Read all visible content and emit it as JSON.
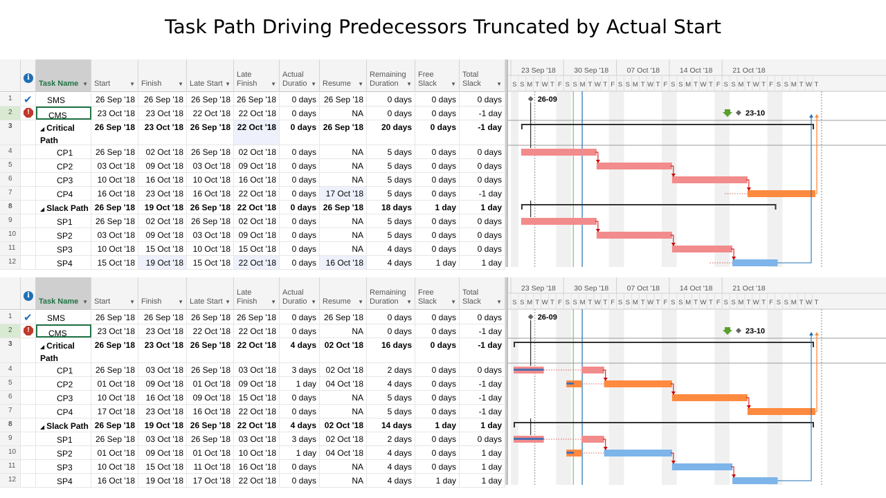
{
  "title": "Task Path Driving Predecessors Truncated by Actual Start",
  "columns": [
    {
      "key": "name",
      "label": "Task Name"
    },
    {
      "key": "start",
      "label": "Start"
    },
    {
      "key": "finish",
      "label": "Finish"
    },
    {
      "key": "late_start",
      "label": "Late Start"
    },
    {
      "key": "late_finish",
      "label": "Late Finish"
    },
    {
      "key": "actual_duration",
      "label": "Actual Duratio"
    },
    {
      "key": "resume",
      "label": "Resume"
    },
    {
      "key": "remaining_duration",
      "label": "Remaining Duration"
    },
    {
      "key": "free_slack",
      "label": "Free Slack"
    },
    {
      "key": "total_slack",
      "label": "Total Slack"
    }
  ],
  "timescale": {
    "weeks": [
      "23 Sep '18",
      "30 Sep '18",
      "07 Oct '18",
      "14 Oct '18",
      "21 Oct '18"
    ],
    "day_letters": [
      "S",
      "S",
      "M",
      "T",
      "W",
      "T",
      "F",
      "S",
      "S",
      "M",
      "T",
      "W",
      "T",
      "F",
      "S",
      "S",
      "M",
      "T",
      "W",
      "T",
      "F",
      "S",
      "S",
      "M",
      "T",
      "W",
      "T",
      "F",
      "S",
      "S",
      "M",
      "T",
      "W",
      "T",
      "F",
      "S",
      "S",
      "M",
      "T",
      "W",
      "T"
    ]
  },
  "colors": {
    "critical_bar": "#f28b8b",
    "near_critical_bar": "#fd8a3f",
    "normal_bar": "#7db4ea",
    "progress_bar": "#4a6fb0",
    "summary_bar": "#333333",
    "status_line": "#1f6fb5",
    "current_line": "#6bab5b"
  },
  "panels": [
    {
      "rows": [
        {
          "id": "1",
          "icon": "check",
          "name": "SMS",
          "start": "26 Sep '18",
          "finish": "26 Sep '18",
          "late_start": "26 Sep '18",
          "late_finish": "26 Sep '18",
          "actual_duration": "0 days",
          "resume": "26 Sep '18",
          "remaining_duration": "0 days",
          "free_slack": "0 days",
          "total_slack": "0 days",
          "milestone_label": "26-09"
        },
        {
          "id": "2",
          "icon": "warn",
          "name": "CMS",
          "start": "23 Oct '18",
          "finish": "23 Oct '18",
          "late_start": "22 Oct '18",
          "late_finish": "22 Oct '18",
          "actual_duration": "0 days",
          "resume": "NA",
          "remaining_duration": "0 days",
          "free_slack": "0 days",
          "total_slack": "-1 day",
          "milestone_label": "23-10"
        },
        {
          "id": "3",
          "summary": true,
          "name": "Critical Path",
          "start": "26 Sep '18",
          "finish": "23 Oct '18",
          "late_start": "26 Sep '18",
          "late_finish": "22 Oct '18",
          "actual_duration": "0 days",
          "resume": "26 Sep '18",
          "remaining_duration": "20 days",
          "free_slack": "0 days",
          "total_slack": "-1 day"
        },
        {
          "id": "4",
          "name": "CP1",
          "start": "26 Sep '18",
          "finish": "02 Oct '18",
          "late_start": "26 Sep '18",
          "late_finish": "02 Oct '18",
          "actual_duration": "0 days",
          "resume": "NA",
          "remaining_duration": "5 days",
          "free_slack": "0 days",
          "total_slack": "0 days"
        },
        {
          "id": "5",
          "name": "CP2",
          "start": "03 Oct '18",
          "finish": "09 Oct '18",
          "late_start": "03 Oct '18",
          "late_finish": "09 Oct '18",
          "actual_duration": "0 days",
          "resume": "NA",
          "remaining_duration": "5 days",
          "free_slack": "0 days",
          "total_slack": "0 days"
        },
        {
          "id": "6",
          "name": "CP3",
          "start": "10 Oct '18",
          "finish": "16 Oct '18",
          "late_start": "10 Oct '18",
          "late_finish": "16 Oct '18",
          "actual_duration": "0 days",
          "resume": "NA",
          "remaining_duration": "5 days",
          "free_slack": "0 days",
          "total_slack": "0 days"
        },
        {
          "id": "7",
          "name": "CP4",
          "start": "16 Oct '18",
          "finish": "23 Oct '18",
          "late_start": "16 Oct '18",
          "late_finish": "22 Oct '18",
          "actual_duration": "0 days",
          "resume": "17 Oct '18",
          "remaining_duration": "5 days",
          "free_slack": "0 days",
          "total_slack": "-1 day"
        },
        {
          "id": "8",
          "summary": true,
          "name": "Slack Path",
          "start": "26 Sep '18",
          "finish": "19 Oct '18",
          "late_start": "26 Sep '18",
          "late_finish": "22 Oct '18",
          "actual_duration": "0 days",
          "resume": "26 Sep '18",
          "remaining_duration": "18 days",
          "free_slack": "1 day",
          "total_slack": "1 day"
        },
        {
          "id": "9",
          "name": "SP1",
          "start": "26 Sep '18",
          "finish": "02 Oct '18",
          "late_start": "26 Sep '18",
          "late_finish": "02 Oct '18",
          "actual_duration": "0 days",
          "resume": "NA",
          "remaining_duration": "5 days",
          "free_slack": "0 days",
          "total_slack": "0 days"
        },
        {
          "id": "10",
          "name": "SP2",
          "start": "03 Oct '18",
          "finish": "09 Oct '18",
          "late_start": "03 Oct '18",
          "late_finish": "09 Oct '18",
          "actual_duration": "0 days",
          "resume": "NA",
          "remaining_duration": "5 days",
          "free_slack": "0 days",
          "total_slack": "0 days"
        },
        {
          "id": "11",
          "name": "SP3",
          "start": "10 Oct '18",
          "finish": "15 Oct '18",
          "late_start": "10 Oct '18",
          "late_finish": "15 Oct '18",
          "actual_duration": "0 days",
          "resume": "NA",
          "remaining_duration": "4 days",
          "free_slack": "0 days",
          "total_slack": "0 days"
        },
        {
          "id": "12",
          "name": "SP4",
          "start": "15 Oct '18",
          "finish": "19 Oct '18",
          "late_start": "15 Oct '18",
          "late_finish": "22 Oct '18",
          "actual_duration": "0 days",
          "resume": "16 Oct '18",
          "remaining_duration": "4 days",
          "free_slack": "1 day",
          "total_slack": "1 day"
        }
      ]
    },
    {
      "rows": [
        {
          "id": "1",
          "icon": "check",
          "name": "SMS",
          "start": "26 Sep '18",
          "finish": "26 Sep '18",
          "late_start": "26 Sep '18",
          "late_finish": "26 Sep '18",
          "actual_duration": "0 days",
          "resume": "26 Sep '18",
          "remaining_duration": "0 days",
          "free_slack": "0 days",
          "total_slack": "0 days",
          "milestone_label": "26-09"
        },
        {
          "id": "2",
          "icon": "warn",
          "name": "CMS",
          "start": "23 Oct '18",
          "finish": "23 Oct '18",
          "late_start": "22 Oct '18",
          "late_finish": "22 Oct '18",
          "actual_duration": "0 days",
          "resume": "NA",
          "remaining_duration": "0 days",
          "free_slack": "0 days",
          "total_slack": "-1 day",
          "milestone_label": "23-10"
        },
        {
          "id": "3",
          "summary": true,
          "name": "Critical Path",
          "start": "26 Sep '18",
          "finish": "23 Oct '18",
          "late_start": "26 Sep '18",
          "late_finish": "22 Oct '18",
          "actual_duration": "4 days",
          "resume": "02 Oct '18",
          "remaining_duration": "16 days",
          "free_slack": "0 days",
          "total_slack": "-1 day"
        },
        {
          "id": "4",
          "name": "CP1",
          "start": "26 Sep '18",
          "finish": "03 Oct '18",
          "late_start": "26 Sep '18",
          "late_finish": "03 Oct '18",
          "actual_duration": "3 days",
          "resume": "02 Oct '18",
          "remaining_duration": "2 days",
          "free_slack": "0 days",
          "total_slack": "0 days"
        },
        {
          "id": "5",
          "name": "CP2",
          "start": "01 Oct '18",
          "finish": "09 Oct '18",
          "late_start": "01 Oct '18",
          "late_finish": "09 Oct '18",
          "actual_duration": "1 day",
          "resume": "04 Oct '18",
          "remaining_duration": "4 days",
          "free_slack": "0 days",
          "total_slack": "-1 day"
        },
        {
          "id": "6",
          "name": "CP3",
          "start": "10 Oct '18",
          "finish": "16 Oct '18",
          "late_start": "09 Oct '18",
          "late_finish": "15 Oct '18",
          "actual_duration": "0 days",
          "resume": "NA",
          "remaining_duration": "5 days",
          "free_slack": "0 days",
          "total_slack": "-1 day"
        },
        {
          "id": "7",
          "name": "CP4",
          "start": "17 Oct '18",
          "finish": "23 Oct '18",
          "late_start": "16 Oct '18",
          "late_finish": "22 Oct '18",
          "actual_duration": "0 days",
          "resume": "NA",
          "remaining_duration": "5 days",
          "free_slack": "0 days",
          "total_slack": "-1 day"
        },
        {
          "id": "8",
          "summary": true,
          "name": "Slack Path",
          "start": "26 Sep '18",
          "finish": "19 Oct '18",
          "late_start": "26 Sep '18",
          "late_finish": "22 Oct '18",
          "actual_duration": "4 days",
          "resume": "02 Oct '18",
          "remaining_duration": "14 days",
          "free_slack": "1 day",
          "total_slack": "1 day"
        },
        {
          "id": "9",
          "name": "SP1",
          "start": "26 Sep '18",
          "finish": "03 Oct '18",
          "late_start": "26 Sep '18",
          "late_finish": "03 Oct '18",
          "actual_duration": "3 days",
          "resume": "02 Oct '18",
          "remaining_duration": "2 days",
          "free_slack": "0 days",
          "total_slack": "0 days"
        },
        {
          "id": "10",
          "name": "SP2",
          "start": "01 Oct '18",
          "finish": "09 Oct '18",
          "late_start": "01 Oct '18",
          "late_finish": "10 Oct '18",
          "actual_duration": "1 day",
          "resume": "04 Oct '18",
          "remaining_duration": "4 days",
          "free_slack": "0 days",
          "total_slack": "1 day"
        },
        {
          "id": "11",
          "name": "SP3",
          "start": "10 Oct '18",
          "finish": "15 Oct '18",
          "late_start": "11 Oct '18",
          "late_finish": "16 Oct '18",
          "actual_duration": "0 days",
          "resume": "NA",
          "remaining_duration": "4 days",
          "free_slack": "0 days",
          "total_slack": "1 day"
        },
        {
          "id": "12",
          "name": "SP4",
          "start": "16 Oct '18",
          "finish": "19 Oct '18",
          "late_start": "17 Oct '18",
          "late_finish": "22 Oct '18",
          "actual_duration": "0 days",
          "resume": "NA",
          "remaining_duration": "4 days",
          "free_slack": "1 day",
          "total_slack": "1 day"
        }
      ]
    }
  ]
}
